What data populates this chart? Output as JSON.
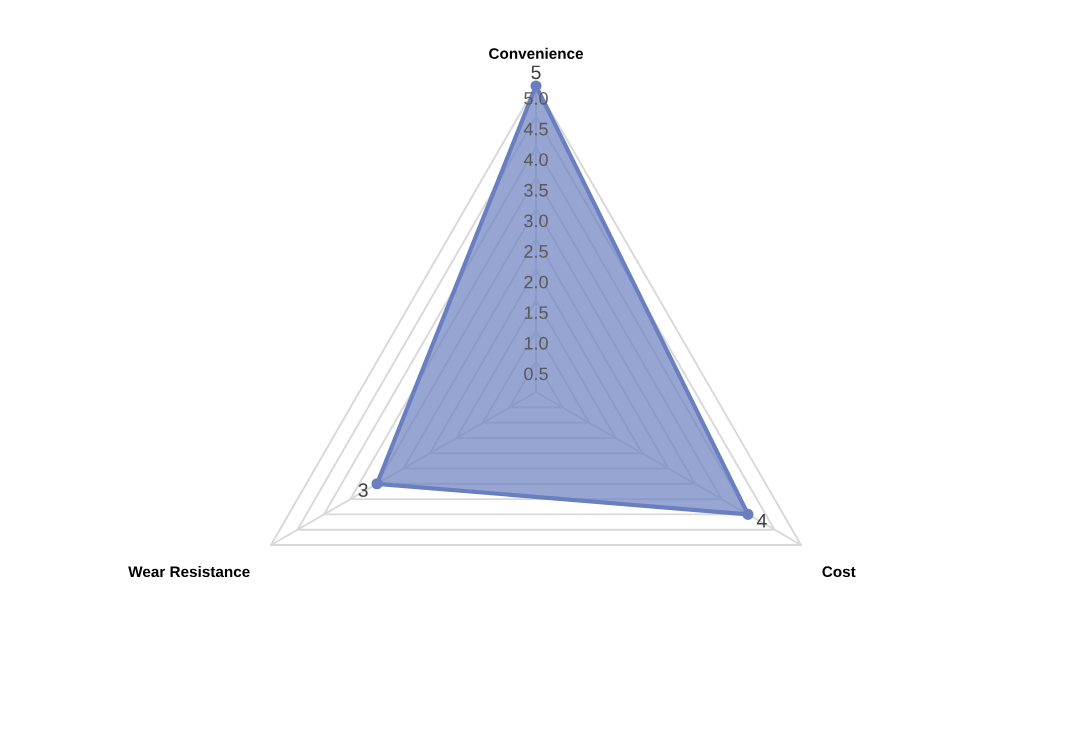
{
  "chart_data": {
    "type": "radar",
    "categories": [
      "Convenience",
      "Cost",
      "Wear Resistance"
    ],
    "series": [
      {
        "color": "#6a7fbf",
        "values": [
          5,
          4,
          3
        ]
      }
    ],
    "ylim": [
      0,
      5
    ],
    "yticks": [
      {
        "value": 0.5,
        "label": "0.5"
      },
      {
        "value": 1,
        "label": "1.0"
      },
      {
        "value": 1.5,
        "label": "1.5"
      },
      {
        "value": 2,
        "label": "2.0"
      },
      {
        "value": 2.5,
        "label": "2.5"
      },
      {
        "value": 3,
        "label": "3.0"
      },
      {
        "value": 3.5,
        "label": "3.5"
      },
      {
        "value": 4,
        "label": "4.0"
      },
      {
        "value": 4.5,
        "label": "4.5"
      },
      {
        "value": 5,
        "label": "5.0"
      }
    ],
    "grid": true,
    "marker": "circle",
    "data_labels": true
  }
}
